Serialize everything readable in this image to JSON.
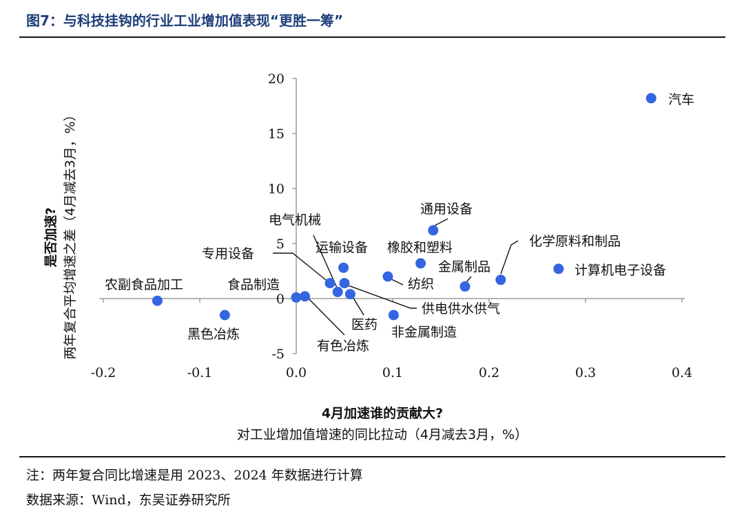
{
  "figure_title": "图7：与科技挂钩的行业工业增加值表现“更胜一筹”",
  "footnote": "注：两年复合同比增速是用 2023、2024 年数据进行计算",
  "source": "数据来源：Wind，东吴证券研究所",
  "chart_data": {
    "type": "scatter",
    "title": "",
    "xlabel": "4月加速谁的贡献大?",
    "xlabel_sub": "对工业增加值增速的同比拉动（4月减去3月，%）",
    "ylabel": "是否加速?",
    "ylabel_sub": "两年复合平均增速之差（4月减去3月，%）",
    "xlim": [
      -0.2,
      0.4
    ],
    "ylim": [
      -5,
      20
    ],
    "xticks": [
      -0.2,
      -0.1,
      0.0,
      0.1,
      0.2,
      0.3,
      0.4
    ],
    "xtick_labels": [
      "-0.2",
      "-0.1",
      "0.0",
      "0.1",
      "0.2",
      "0.3",
      "0.4"
    ],
    "yticks": [
      -5,
      0,
      5,
      10,
      15,
      20
    ],
    "ytick_labels": [
      "-5",
      "0",
      "5",
      "10",
      "15",
      "20"
    ],
    "grid": false,
    "legend": "none",
    "point_color": "#3366e0",
    "points": [
      {
        "label": "汽车",
        "x": 0.368,
        "y": 18.2
      },
      {
        "label": "计算机电子设备",
        "x": 0.272,
        "y": 2.7
      },
      {
        "label": "化学原料和制品",
        "x": 0.212,
        "y": 1.7
      },
      {
        "label": "金属制品",
        "x": 0.175,
        "y": 1.1
      },
      {
        "label": "通用设备",
        "x": 0.142,
        "y": 6.2
      },
      {
        "label": "橡胶和塑料",
        "x": 0.129,
        "y": 3.2
      },
      {
        "label": "纺织",
        "x": 0.095,
        "y": 2.0
      },
      {
        "label": "非金属制造",
        "x": 0.101,
        "y": -1.5
      },
      {
        "label": "运输设备",
        "x": 0.049,
        "y": 2.8
      },
      {
        "label": "电气机械",
        "x": 0.043,
        "y": 0.6
      },
      {
        "label": "专用设备",
        "x": 0.035,
        "y": 1.4
      },
      {
        "label": "供电供水供气",
        "x": 0.05,
        "y": 1.4
      },
      {
        "label": "医药",
        "x": 0.056,
        "y": 0.4
      },
      {
        "label": "有色冶炼",
        "x": 0.009,
        "y": 0.2
      },
      {
        "label": "食品制造",
        "x": 0.0,
        "y": 0.1
      },
      {
        "label": "黑色冶炼",
        "x": -0.074,
        "y": -1.5
      },
      {
        "label": "农副食品加工",
        "x": -0.144,
        "y": -0.2
      }
    ]
  }
}
